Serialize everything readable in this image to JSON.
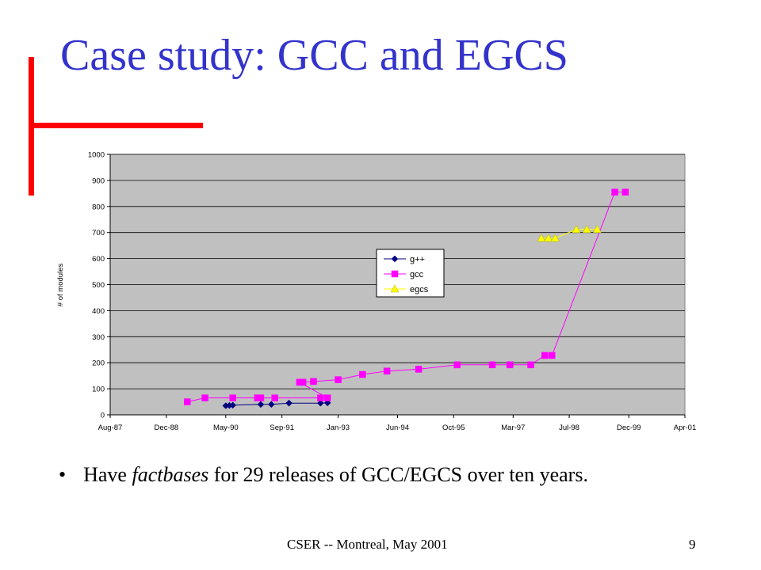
{
  "slide": {
    "title": "Case study:  GCC and EGCS",
    "bullet": {
      "symbol": "•",
      "before": "Have ",
      "italic": "factbases",
      "after": " for 29 releases of GCC/EGCS over ten years."
    },
    "footer": "CSER -- Montreal, May 2001",
    "page_number": "9",
    "colors": {
      "title": "#3333cc",
      "accent_bars": "#ff0000"
    }
  },
  "chart_data": {
    "type": "line",
    "title": "",
    "xlabel": "",
    "ylabel": "# of modules",
    "ylim": [
      0,
      1000
    ],
    "yticks": [
      0,
      100,
      200,
      300,
      400,
      500,
      600,
      700,
      800,
      900,
      1000
    ],
    "xlim": [
      "1987-08-01",
      "2001-04-01"
    ],
    "xticks": [
      {
        "date": "1987-08-01",
        "label": "Aug-87"
      },
      {
        "date": "1988-12-01",
        "label": "Dec-88"
      },
      {
        "date": "1990-05-01",
        "label": "May-90"
      },
      {
        "date": "1991-09-01",
        "label": "Sep-91"
      },
      {
        "date": "1993-01-01",
        "label": "Jan-93"
      },
      {
        "date": "1994-06-01",
        "label": "Jun-94"
      },
      {
        "date": "1995-10-01",
        "label": "Oct-95"
      },
      {
        "date": "1997-03-01",
        "label": "Mar-97"
      },
      {
        "date": "1998-07-01",
        "label": "Jul-98"
      },
      {
        "date": "1999-12-01",
        "label": "Dec-99"
      },
      {
        "date": "2001-04-01",
        "label": "Apr-01"
      }
    ],
    "grid": true,
    "plot_background": "#c0c0c0",
    "legend_position": "center",
    "series": [
      {
        "name": "g++",
        "color": "#000080",
        "marker": "diamond",
        "points": [
          {
            "x": "1990-05-01",
            "y": 35
          },
          {
            "x": "1990-06-01",
            "y": 36
          },
          {
            "x": "1990-07-01",
            "y": 37
          },
          {
            "x": "1991-03-01",
            "y": 40
          },
          {
            "x": "1991-06-01",
            "y": 40
          },
          {
            "x": "1991-11-01",
            "y": 45
          },
          {
            "x": "1992-08-01",
            "y": 45
          },
          {
            "x": "1992-10-01",
            "y": 46
          }
        ]
      },
      {
        "name": "gcc",
        "color": "#ff00ff",
        "marker": "square",
        "points": [
          {
            "x": "1989-06-01",
            "y": 50
          },
          {
            "x": "1989-11-01",
            "y": 65
          },
          {
            "x": "1990-07-01",
            "y": 65
          },
          {
            "x": "1991-02-01",
            "y": 65
          },
          {
            "x": "1991-03-01",
            "y": 65
          },
          {
            "x": "1991-07-01",
            "y": 65
          },
          {
            "x": "1992-08-01",
            "y": 65
          },
          {
            "x": "1992-10-01",
            "y": 65
          },
          {
            "x": "1992-02-01",
            "y": 125
          },
          {
            "x": "1992-03-01",
            "y": 125
          },
          {
            "x": "1992-06-01",
            "y": 128
          },
          {
            "x": "1993-01-01",
            "y": 135
          },
          {
            "x": "1993-08-01",
            "y": 155
          },
          {
            "x": "1994-03-01",
            "y": 168
          },
          {
            "x": "1994-12-01",
            "y": 175
          },
          {
            "x": "1995-11-01",
            "y": 192
          },
          {
            "x": "1996-09-01",
            "y": 192
          },
          {
            "x": "1997-02-01",
            "y": 192
          },
          {
            "x": "1997-08-01",
            "y": 192
          },
          {
            "x": "1997-12-01",
            "y": 228
          },
          {
            "x": "1998-02-01",
            "y": 228
          },
          {
            "x": "1999-08-01",
            "y": 855
          },
          {
            "x": "1999-11-01",
            "y": 855
          }
        ]
      },
      {
        "name": "egcs",
        "color": "#ffff00",
        "marker": "triangle",
        "points": [
          {
            "x": "1997-11-01",
            "y": 678
          },
          {
            "x": "1998-01-01",
            "y": 678
          },
          {
            "x": "1998-03-01",
            "y": 678
          },
          {
            "x": "1998-09-01",
            "y": 712
          },
          {
            "x": "1998-12-01",
            "y": 712
          },
          {
            "x": "1999-03-01",
            "y": 712
          }
        ]
      }
    ]
  }
}
